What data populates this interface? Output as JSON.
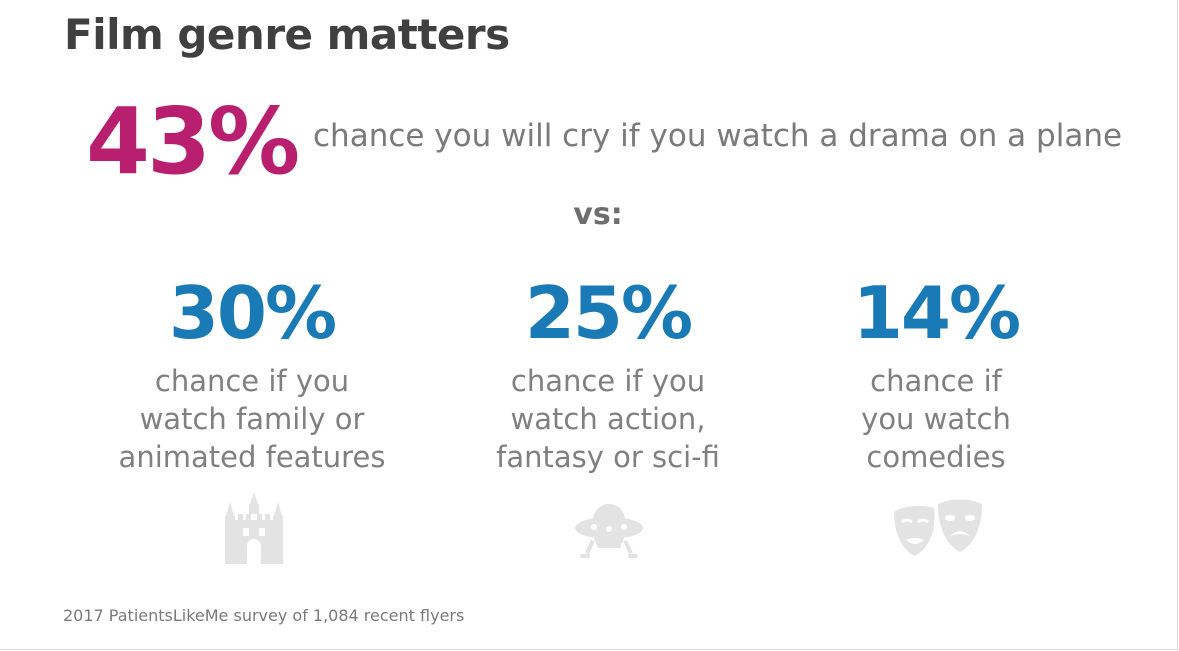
{
  "title": "Film genre matters",
  "headline": {
    "stat": "43%",
    "text": "chance you will cry if you watch a drama on a plane"
  },
  "vs_label": "vs:",
  "columns": [
    {
      "stat": "30%",
      "desc_lines": [
        "chance if you",
        "watch family or",
        "animated features"
      ],
      "icon": "castle-icon"
    },
    {
      "stat": "25%",
      "desc_lines": [
        "chance if you",
        "watch action,",
        "fantasy or sci-fi"
      ],
      "icon": "ufo-icon"
    },
    {
      "stat": "14%",
      "desc_lines": [
        "chance if",
        "you watch",
        "comedies"
      ],
      "icon": "theater-masks-icon"
    }
  ],
  "footnote": "2017 PatientsLikeMe survey of 1,084 recent flyers",
  "colors": {
    "headline_stat": "#b8206f",
    "column_stat": "#1a7ab5",
    "title": "#404040",
    "body_text": "#7a7a7a",
    "icon": "#e3e3e3"
  }
}
